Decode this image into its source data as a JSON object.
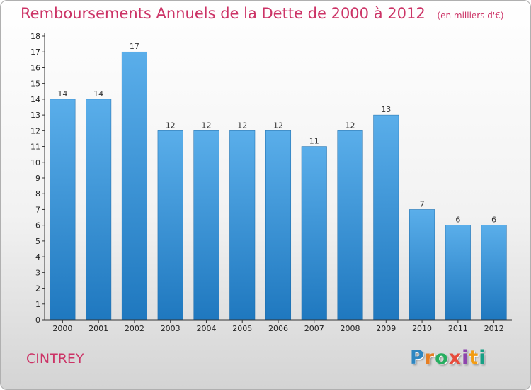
{
  "header": {
    "title": "Remboursements Annuels de la Dette de 2000 à 2012",
    "subtitle": "(en milliers d'€)"
  },
  "commune": "CINTREY",
  "logo": {
    "text": "Proxiti",
    "letters": [
      "P",
      "r",
      "o",
      "x",
      "i",
      "t",
      "i"
    ],
    "colors": [
      "#2e86c1",
      "#e67e22",
      "#27ae60",
      "#e74c3c",
      "#8e44ad",
      "#f39c12",
      "#16a085"
    ]
  },
  "colors": {
    "title": "#cc3366",
    "bar_light": "#5aaeea",
    "bar_dark": "#1f78bf"
  },
  "chart_data": {
    "type": "bar",
    "title": "Remboursements Annuels de la Dette de 2000 à 2012",
    "subtitle": "(en milliers d'€)",
    "categories": [
      "2000",
      "2001",
      "2002",
      "2003",
      "2004",
      "2005",
      "2006",
      "2007",
      "2008",
      "2009",
      "2010",
      "2011",
      "2012"
    ],
    "values": [
      14,
      14,
      17,
      12,
      12,
      12,
      12,
      11,
      12,
      13,
      7,
      6,
      6
    ],
    "ylim": [
      0,
      18
    ],
    "yticks": [
      0,
      1,
      2,
      3,
      4,
      5,
      6,
      7,
      8,
      9,
      10,
      11,
      12,
      13,
      14,
      15,
      16,
      17,
      18
    ],
    "grid": false,
    "data_labels": true,
    "xlabel": "",
    "ylabel": ""
  }
}
